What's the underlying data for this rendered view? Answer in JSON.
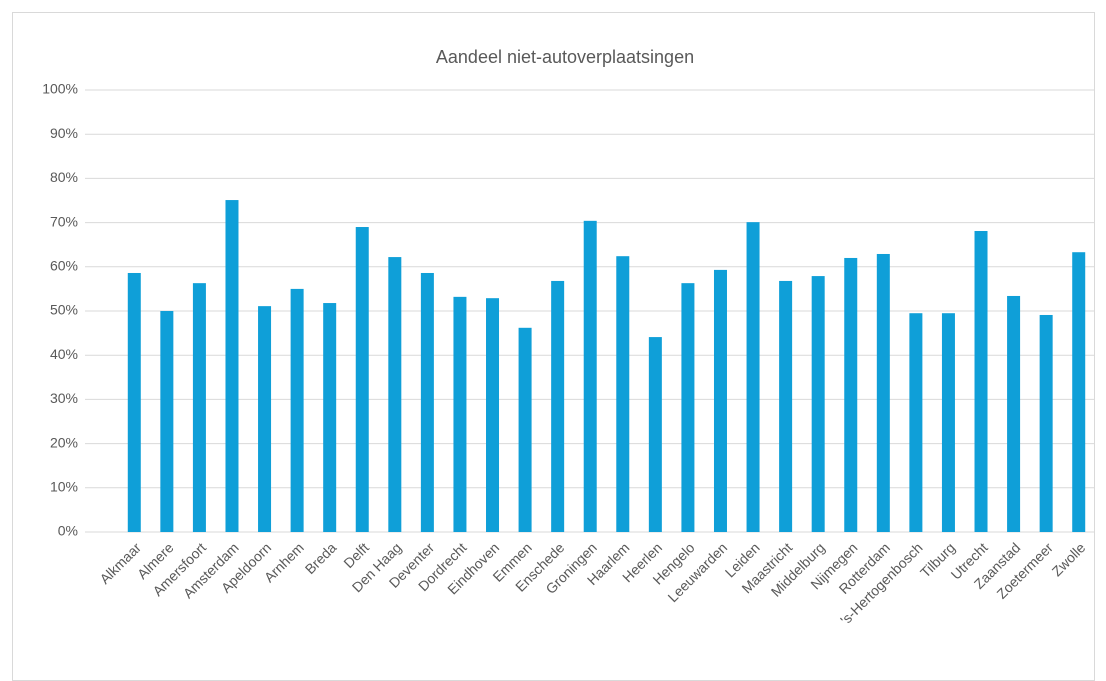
{
  "chart_data": {
    "type": "bar",
    "title": "Aandeel niet-autoverplaatsingen",
    "categories": [
      "Alkmaar",
      "Almere",
      "Amersfoort",
      "Amsterdam",
      "Apeldoorn",
      "Arnhem",
      "Breda",
      "Delft",
      "Den Haag",
      "Deventer",
      "Dordrecht",
      "Eindhoven",
      "Emmen",
      "Enschede",
      "Groningen",
      "Haarlem",
      "Heerlen",
      "Hengelo",
      "Leeuwarden",
      "Leiden",
      "Maastricht",
      "Middelburg",
      "Nijmegen",
      "Rotterdam",
      "'s-Hertogenbosch",
      "Tilburg",
      "Utrecht",
      "Zaanstad",
      "Zoetermeer",
      "Zwolle"
    ],
    "values": [
      58.6,
      50,
      56.3,
      75.1,
      51.1,
      55,
      51.8,
      69,
      62.2,
      58.6,
      53.2,
      52.9,
      46.2,
      56.8,
      70.4,
      62.4,
      44.1,
      56.3,
      59.3,
      70.1,
      56.8,
      57.9,
      62,
      62.9,
      49.5,
      49.5,
      68.1,
      53.4,
      49.1,
      63.3
    ],
    "color": "#0f9fd8",
    "ylim": [
      0,
      100
    ],
    "yticks": [
      {
        "value": 0,
        "label": "0%"
      },
      {
        "value": 10,
        "label": "10%"
      },
      {
        "value": 20,
        "label": "20%"
      },
      {
        "value": 30,
        "label": "30%"
      },
      {
        "value": 40,
        "label": "40%"
      },
      {
        "value": 50,
        "label": "50%"
      },
      {
        "value": 60,
        "label": "60%"
      },
      {
        "value": 70,
        "label": "70%"
      },
      {
        "value": 80,
        "label": "80%"
      },
      {
        "value": 90,
        "label": "90%"
      },
      {
        "value": 100,
        "label": "100%"
      }
    ],
    "grid": true
  }
}
